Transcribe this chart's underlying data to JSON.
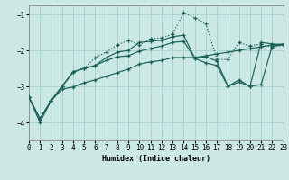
{
  "xlabel": "Humidex (Indice chaleur)",
  "bg_color": "#cce8e5",
  "line_color": "#1a6058",
  "grid_color": "#aad4d0",
  "xlim": [
    0,
    23
  ],
  "ylim": [
    -4.5,
    -0.75
  ],
  "yticks": [
    -4,
    -3,
    -2,
    -1
  ],
  "xticks": [
    0,
    1,
    2,
    3,
    4,
    5,
    6,
    7,
    8,
    9,
    10,
    11,
    12,
    13,
    14,
    15,
    16,
    17,
    18,
    19,
    20,
    21,
    22,
    23
  ],
  "curve_dotted_x": [
    0,
    1,
    2,
    3,
    4,
    5,
    6,
    7,
    8,
    9,
    10,
    11,
    12,
    13,
    14,
    15,
    16,
    17,
    18,
    19,
    20,
    21,
    22,
    23
  ],
  "curve_dotted_y": [
    -3.3,
    -3.9,
    -3.4,
    -3.0,
    -2.6,
    -2.5,
    -2.2,
    -2.05,
    -1.85,
    -1.72,
    -1.85,
    -1.68,
    -1.65,
    -1.55,
    -0.95,
    -1.1,
    -1.25,
    -2.25,
    -2.25,
    -1.78,
    -1.88,
    -1.82,
    -1.92,
    -1.85
  ],
  "curve_solid1_x": [
    0,
    1,
    2,
    3,
    4,
    5,
    6,
    7,
    8,
    9,
    10,
    11,
    12,
    13,
    14,
    15,
    16,
    17,
    18,
    19,
    20,
    21,
    22,
    23
  ],
  "curve_solid1_y": [
    -3.3,
    -3.9,
    -3.4,
    -3.0,
    -2.6,
    -2.5,
    -2.42,
    -2.2,
    -2.05,
    -2.0,
    -1.78,
    -1.75,
    -1.72,
    -1.62,
    -1.58,
    -2.22,
    -2.18,
    -2.3,
    -3.0,
    -2.82,
    -3.0,
    -1.78,
    -1.82,
    -1.85
  ],
  "curve_solid2_x": [
    0,
    1,
    2,
    3,
    4,
    5,
    6,
    7,
    8,
    9,
    10,
    11,
    12,
    13,
    14,
    15,
    16,
    17,
    18,
    19,
    20,
    21,
    22,
    23
  ],
  "curve_solid2_y": [
    -3.3,
    -4.0,
    -3.4,
    -3.0,
    -2.6,
    -2.5,
    -2.42,
    -2.28,
    -2.18,
    -2.15,
    -2.02,
    -1.95,
    -1.88,
    -1.78,
    -1.75,
    -2.22,
    -2.35,
    -2.42,
    -3.0,
    -2.88,
    -3.0,
    -2.95,
    -1.88,
    -1.85
  ],
  "curve_solid3_x": [
    0,
    1,
    2,
    3,
    4,
    5,
    6,
    7,
    8,
    9,
    10,
    11,
    12,
    13,
    14,
    15,
    16,
    17,
    18,
    19,
    20,
    21,
    22,
    23
  ],
  "curve_solid3_y": [
    -3.3,
    -3.9,
    -3.4,
    -3.08,
    -3.02,
    -2.9,
    -2.82,
    -2.72,
    -2.62,
    -2.52,
    -2.38,
    -2.32,
    -2.28,
    -2.2,
    -2.2,
    -2.2,
    -2.15,
    -2.1,
    -2.05,
    -2.0,
    -1.95,
    -1.9,
    -1.85,
    -1.82
  ]
}
